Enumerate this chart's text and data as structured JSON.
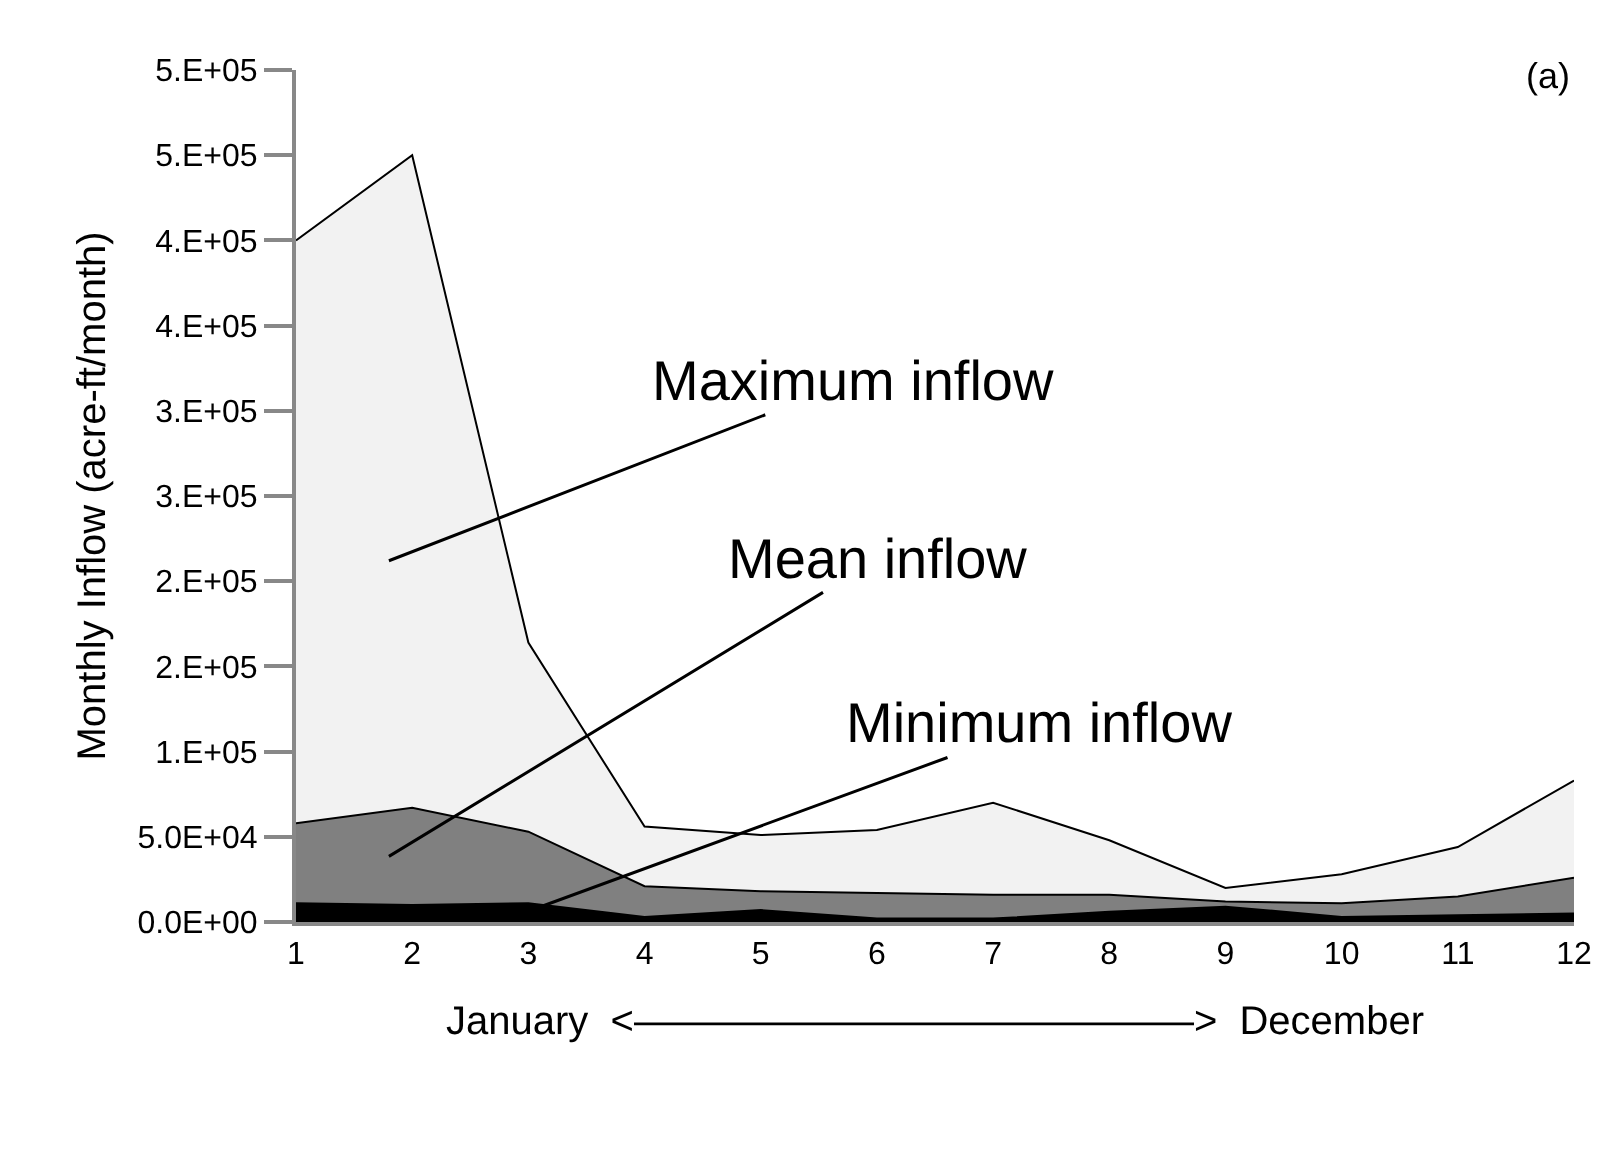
{
  "chart_data": {
    "type": "area",
    "xlabel": "January  <――――――――――――――>  December",
    "ylabel": "Monthly Inflow (acre-ft/month)",
    "x": [
      1,
      2,
      3,
      4,
      5,
      6,
      7,
      8,
      9,
      10,
      11,
      12
    ],
    "xlim": [
      1,
      12
    ],
    "xticks": [
      1,
      2,
      3,
      4,
      5,
      6,
      7,
      8,
      9,
      10,
      11,
      12
    ],
    "ylim": [
      0,
      500000
    ],
    "yticks": [
      {
        "value": 0,
        "label": "0.0E+00"
      },
      {
        "value": 50000,
        "label": "5.0E+04"
      },
      {
        "value": 100000,
        "label": "1.E+05"
      },
      {
        "value": 150000,
        "label": "2.E+05"
      },
      {
        "value": 200000,
        "label": "2.E+05"
      },
      {
        "value": 250000,
        "label": "3.E+05"
      },
      {
        "value": 300000,
        "label": "3.E+05"
      },
      {
        "value": 350000,
        "label": "4.E+05"
      },
      {
        "value": 400000,
        "label": "4.E+05"
      },
      {
        "value": 450000,
        "label": "5.E+05"
      },
      {
        "value": 500000,
        "label": "5.E+05"
      }
    ],
    "series": [
      {
        "color": "#f2f2f2",
        "values": [
          400000,
          450000,
          164000,
          56000,
          51000,
          54000,
          70000,
          48000,
          20000,
          28000,
          44000,
          83000
        ]
      },
      {
        "color": "#808080",
        "values": [
          58000,
          67000,
          53000,
          21000,
          18000,
          17000,
          16000,
          16000,
          12000,
          11000,
          15000,
          26000
        ]
      },
      {
        "color": "#000000",
        "values": [
          11000,
          10000,
          11000,
          3000,
          7000,
          2000,
          2000,
          6000,
          9000,
          3000,
          4000,
          5000
        ]
      }
    ],
    "annotations": [
      "Maximum inflow",
      "Mean inflow",
      "Minimum inflow",
      "(a)"
    ],
    "grid": false
  }
}
